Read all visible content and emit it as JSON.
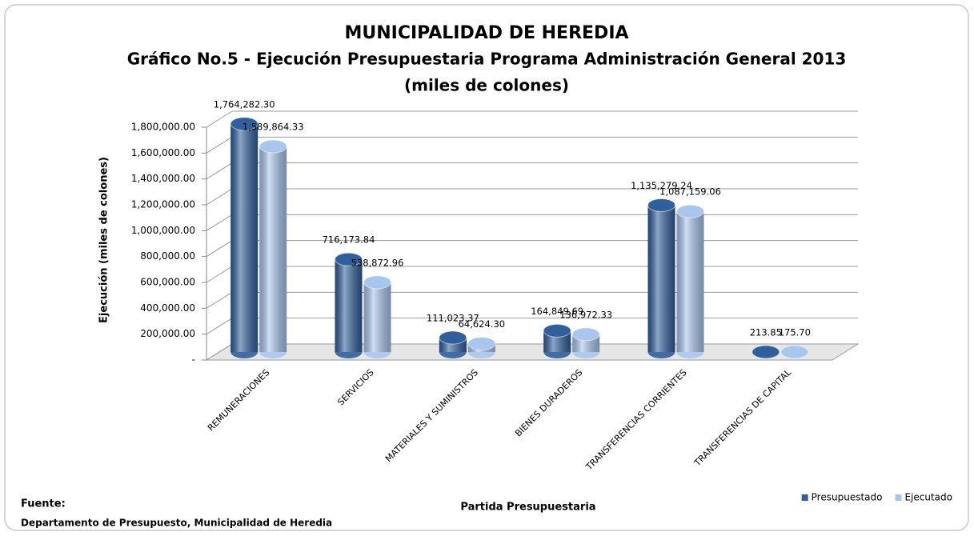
{
  "chart_data": {
    "type": "bar",
    "title": "MUNICIPALIDAD DE HEREDIA",
    "subtitle": "Gráfico No.5 - Ejecución Presupuestaria Programa Administración General 2013",
    "subtitle2": "(miles de colones)",
    "y_label": "Ejecución (miles de colones)",
    "x_label": "Partida Presupuestaria",
    "source_label": "Fuente:",
    "source": "Departamento de Presupuesto, Municipalidad de Heredia",
    "categories": [
      "REMUNERACIONES",
      "SERVICIOS",
      "MATERIALES Y SUMINISTROS",
      "BIENES DURADEROS",
      "TRANSFERENCIAS CORRIENTES",
      "TRANSFERENCIAS DE CAPITAL"
    ],
    "series": [
      {
        "name": "Presupuestado",
        "color": "#2f5f9c",
        "values": [
          1764282.3,
          716173.84,
          111023.37,
          164849.69,
          1135279.24,
          213.85
        ],
        "value_labels": [
          "1,764,282.30",
          "716,173.84",
          "111,023.37",
          "164,849.69",
          "1,135,279.24",
          "213.85"
        ]
      },
      {
        "name": "Ejecutado",
        "color": "#a8c6ee",
        "values": [
          1589864.33,
          538872.96,
          64624.3,
          136972.33,
          1087159.06,
          175.7
        ],
        "value_labels": [
          "1,589,864.33",
          "538,872.96",
          "64,624.30",
          "136,972.33",
          "1,087,159.06",
          "175.70"
        ]
      }
    ],
    "ylim": [
      0,
      1800000
    ],
    "yticks": [
      {
        "value": 0,
        "label": "-"
      },
      {
        "value": 200000,
        "label": "200,000.00"
      },
      {
        "value": 400000,
        "label": "400,000.00"
      },
      {
        "value": 600000,
        "label": "600,000.00"
      },
      {
        "value": 800000,
        "label": "800,000.00"
      },
      {
        "value": 1000000,
        "label": "1,000,000.00"
      },
      {
        "value": 1200000,
        "label": "1,200,000.00"
      },
      {
        "value": 1400000,
        "label": "1,400,000.00"
      },
      {
        "value": 1600000,
        "label": "1,600,000.00"
      },
      {
        "value": 1800000,
        "label": "1,800,000.00"
      }
    ],
    "grid": true,
    "legend": "bottom-right"
  }
}
